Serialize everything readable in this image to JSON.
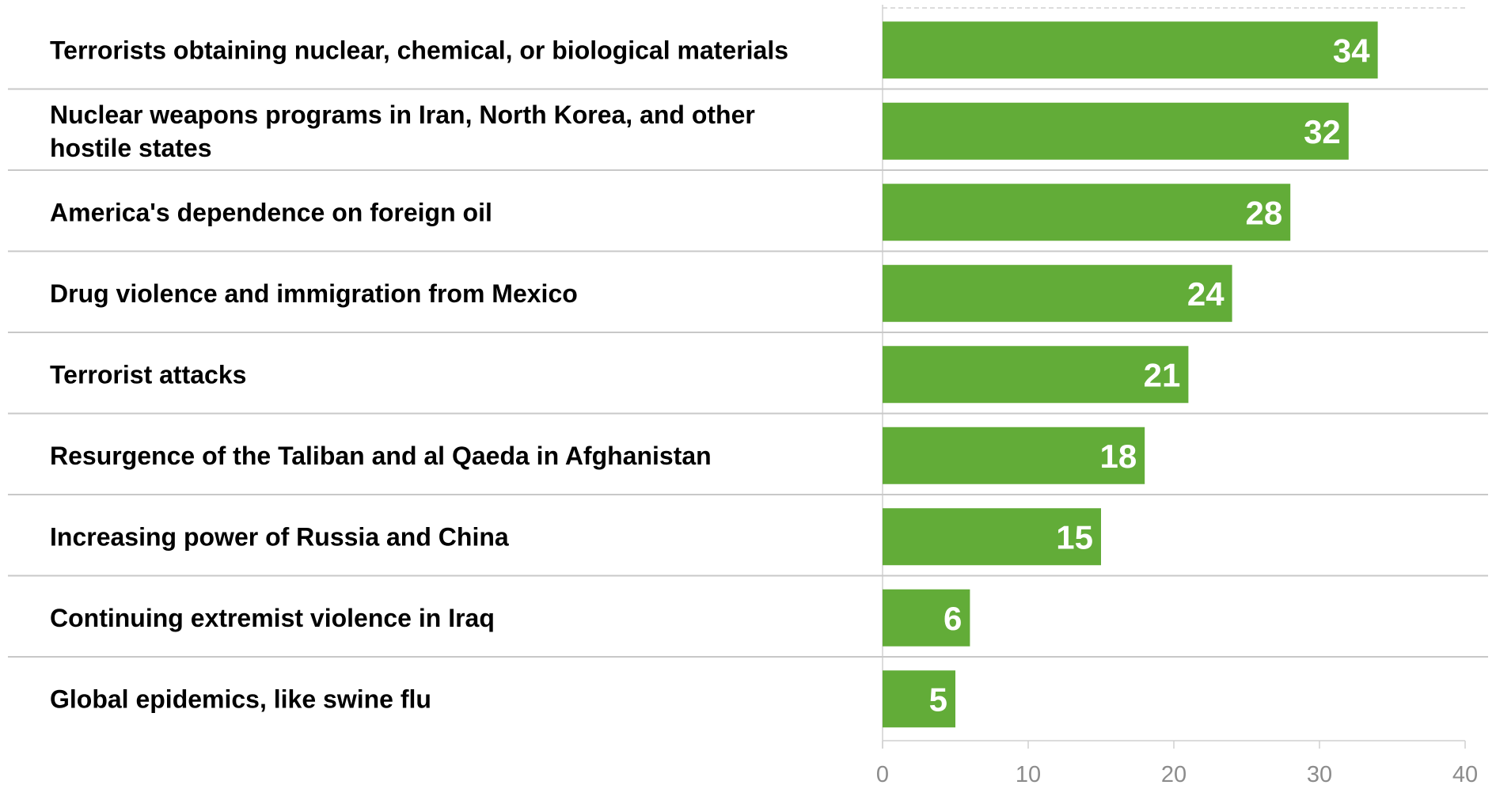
{
  "chart_data": {
    "type": "bar",
    "orientation": "horizontal",
    "categories": [
      [
        "Terrorists obtaining nuclear, chemical, or biological materials"
      ],
      [
        "Nuclear weapons programs in Iran, North Korea, and other",
        "hostile states"
      ],
      [
        "America's dependence on foreign oil"
      ],
      [
        "Drug violence and immigration from Mexico"
      ],
      [
        "Terrorist attacks"
      ],
      [
        "Resurgence of the Taliban and al Qaeda in Afghanistan"
      ],
      [
        "Increasing power of Russia and China"
      ],
      [
        "Continuing extremist violence in Iraq"
      ],
      [
        "Global epidemics, like swine flu"
      ]
    ],
    "values": [
      34,
      32,
      28,
      24,
      21,
      18,
      15,
      6,
      5
    ],
    "xlim": [
      0,
      40
    ],
    "xticks": [
      0,
      10,
      20,
      30,
      40
    ],
    "title": "",
    "xlabel": "",
    "ylabel": "",
    "grid": false,
    "data_labels": "inside-end",
    "colors": {
      "bar": "#62ac38",
      "value_label": "#ffffff",
      "separator": "#c8c8c8",
      "tick_label": "#8c8c8c",
      "axis": "#d0d0d0"
    }
  }
}
